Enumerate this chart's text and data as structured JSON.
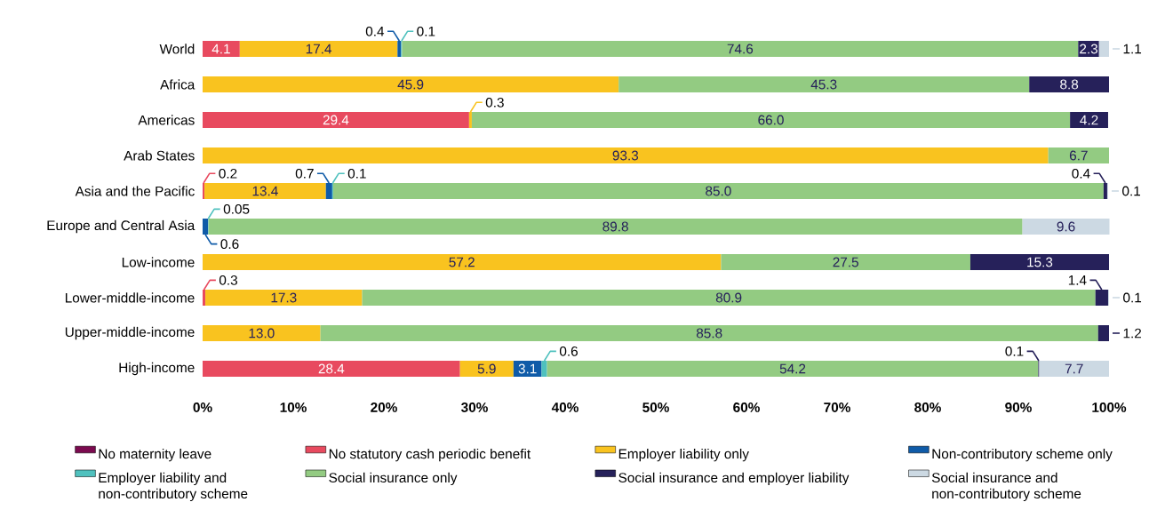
{
  "chart_data": {
    "type": "bar",
    "orientation": "horizontal",
    "stacked": true,
    "legend": "bottom",
    "categories": [
      "World",
      "Africa",
      "Americas",
      "Arab States",
      "Asia and the Pacific",
      "Europe and Central Asia",
      "Low-income",
      "Lower-middle-income",
      "Upper-middle-income",
      "High-income"
    ],
    "xlim": [
      0,
      100
    ],
    "xticks": [
      {
        "value": 0,
        "label": "0%"
      },
      {
        "value": 10,
        "label": "10%"
      },
      {
        "value": 20,
        "label": "20%"
      },
      {
        "value": 30,
        "label": "30%"
      },
      {
        "value": 40,
        "label": "40%"
      },
      {
        "value": 50,
        "label": "50%"
      },
      {
        "value": 60,
        "label": "60%"
      },
      {
        "value": 70,
        "label": "70%"
      },
      {
        "value": 80,
        "label": "80%"
      },
      {
        "value": 90,
        "label": "90%"
      },
      {
        "value": 100,
        "label": "100%"
      }
    ],
    "series": [
      {
        "name": "No maternity leave",
        "color": "#7b0a4f",
        "values": [
          null,
          null,
          null,
          null,
          null,
          null,
          null,
          null,
          null,
          null
        ],
        "value_labels": [
          null,
          null,
          null,
          null,
          null,
          null,
          null,
          null,
          null,
          null
        ]
      },
      {
        "name": "No statutory cash periodic benefit",
        "color": "#e84a5f",
        "values": [
          4.1,
          null,
          29.4,
          null,
          0.2,
          null,
          null,
          0.3,
          null,
          28.4
        ],
        "value_labels": [
          "4.1",
          null,
          "29.4",
          null,
          "0.2",
          null,
          null,
          "0.3",
          null,
          "28.4"
        ]
      },
      {
        "name": "Employer liability only",
        "color": "#f9c31f",
        "values": [
          17.4,
          45.9,
          0.3,
          93.3,
          13.4,
          null,
          57.2,
          17.3,
          13.0,
          5.9
        ],
        "value_labels": [
          "17.4",
          "45.9",
          "0.3",
          "93.3",
          "13.4",
          null,
          "57.2",
          "17.3",
          "13.0",
          "5.9"
        ]
      },
      {
        "name": "Non-contributory scheme only",
        "color": "#0f5ba8",
        "values": [
          0.4,
          null,
          null,
          null,
          0.7,
          0.6,
          null,
          null,
          null,
          3.1
        ],
        "value_labels": [
          "0.4",
          null,
          null,
          null,
          "0.7",
          "0.6",
          null,
          null,
          null,
          "3.1"
        ]
      },
      {
        "name": "Employer liability and non-contributory scheme",
        "color": "#4fc1be",
        "values": [
          0.1,
          null,
          null,
          null,
          0.1,
          0.05,
          null,
          null,
          null,
          0.6
        ],
        "value_labels": [
          "0.1",
          null,
          null,
          null,
          "0.1",
          "0.05",
          null,
          null,
          null,
          "0.6"
        ]
      },
      {
        "name": "Social insurance only",
        "color": "#93cb82",
        "values": [
          74.6,
          45.3,
          66.0,
          6.7,
          85.0,
          89.8,
          27.5,
          80.9,
          85.8,
          54.2
        ],
        "value_labels": [
          "74.6",
          "45.3",
          "66.0",
          "6.7",
          "85.0",
          "89.8",
          "27.5",
          "80.9",
          "85.8",
          "54.2"
        ]
      },
      {
        "name": "Social insurance and employer liability",
        "color": "#26215a",
        "values": [
          2.3,
          8.8,
          4.2,
          null,
          0.4,
          null,
          15.3,
          1.4,
          1.2,
          0.1
        ],
        "value_labels": [
          "2.3",
          "8.8",
          "4.2",
          null,
          "0.4",
          null,
          "15.3",
          "1.4",
          "1.2",
          "0.1"
        ]
      },
      {
        "name": "Social insurance and non-contributory scheme",
        "color": "#ccd9e3",
        "values": [
          1.1,
          null,
          null,
          null,
          0.1,
          9.6,
          null,
          0.1,
          null,
          7.7
        ],
        "value_labels": [
          "1.1",
          null,
          null,
          null,
          "0.1",
          "9.6",
          null,
          "0.1",
          null,
          "7.7"
        ]
      }
    ]
  }
}
